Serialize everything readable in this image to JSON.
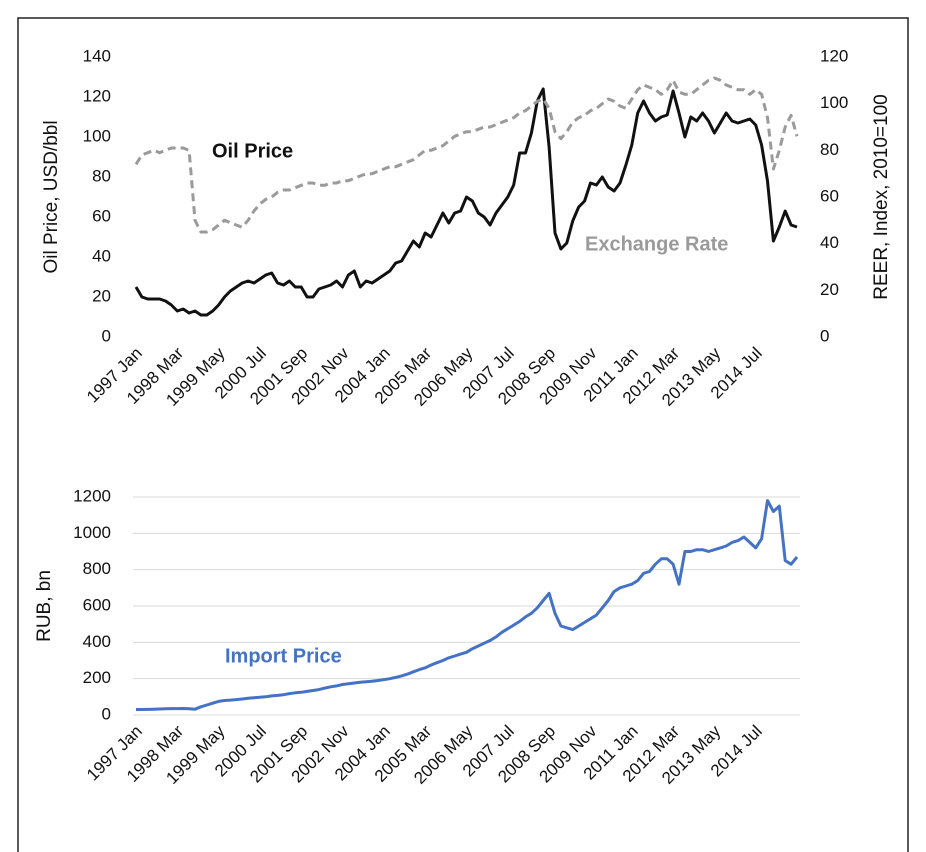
{
  "chart_data": [
    {
      "type": "line",
      "ylabel": "Oil Price, USD/bbl",
      "y2label": "REER, Index, 2010=100",
      "categories": [
        "1997 Jan",
        null,
        null,
        null,
        null,
        null,
        null,
        "1998 Mar",
        null,
        null,
        null,
        null,
        null,
        null,
        "1999 May",
        null,
        null,
        null,
        null,
        null,
        null,
        "2000 Jul",
        null,
        null,
        null,
        null,
        null,
        null,
        "2001 Sep",
        null,
        null,
        null,
        null,
        null,
        null,
        "2002 Nov",
        null,
        null,
        null,
        null,
        null,
        null,
        "2004 Jan",
        null,
        null,
        null,
        null,
        null,
        null,
        "2005 Mar",
        null,
        null,
        null,
        null,
        null,
        null,
        "2006 May",
        null,
        null,
        null,
        null,
        null,
        null,
        "2007 Jul",
        null,
        null,
        null,
        null,
        null,
        null,
        "2008 Sep",
        null,
        null,
        null,
        null,
        null,
        null,
        "2009 Nov",
        null,
        null,
        null,
        null,
        null,
        null,
        "2011 Jan",
        null,
        null,
        null,
        null,
        null,
        null,
        "2012 Mar",
        null,
        null,
        null,
        null,
        null,
        null,
        "2013 May",
        null,
        null,
        null,
        null,
        null,
        null,
        "2014 Jul",
        null,
        null,
        null,
        null,
        null,
        null,
        null
      ],
      "ylim": [
        0,
        140
      ],
      "yticks": [
        0,
        20,
        40,
        60,
        80,
        100,
        120,
        140
      ],
      "y2lim": [
        0,
        120
      ],
      "y2ticks": [
        0,
        20,
        40,
        60,
        80,
        100,
        120
      ],
      "grid": false,
      "series": [
        {
          "name": "Oil Price",
          "color": "#111111",
          "dashed": false,
          "values": [
            25,
            20,
            19,
            19,
            19,
            18,
            16,
            13,
            14,
            12,
            13,
            11,
            11,
            13,
            16,
            20,
            23,
            25,
            27,
            28,
            27,
            29,
            31,
            32,
            27,
            26,
            28,
            25,
            25,
            20,
            20,
            24,
            25,
            26,
            28,
            25,
            31,
            33,
            25,
            28,
            27,
            29,
            31,
            33,
            37,
            38,
            43,
            48,
            45,
            52,
            50,
            56,
            62,
            57,
            62,
            63,
            70,
            68,
            62,
            60,
            56,
            62,
            66,
            70,
            76,
            92,
            92,
            102,
            118,
            124,
            95,
            52,
            44,
            47,
            58,
            65,
            68,
            77,
            76,
            80,
            75,
            73,
            77,
            86,
            96,
            112,
            118,
            112,
            108,
            110,
            111,
            123,
            112,
            100,
            110,
            108,
            112,
            108,
            102,
            107,
            112,
            108,
            107,
            108,
            109,
            106,
            96,
            78,
            48,
            55,
            63,
            56,
            55
          ]
        },
        {
          "name": "Exchange Rate",
          "color": "#9a9a9a",
          "dashed": true,
          "axis": "y2",
          "values": [
            74,
            78,
            79,
            80,
            79,
            80,
            81,
            81,
            81,
            80,
            50,
            45,
            45,
            46,
            48,
            50,
            49,
            48,
            47,
            50,
            54,
            57,
            59,
            60,
            62,
            63,
            63,
            64,
            65,
            66,
            66,
            65,
            65,
            66,
            66,
            67,
            67,
            68,
            69,
            70,
            70,
            71,
            72,
            73,
            73,
            74,
            75,
            76,
            78,
            80,
            80,
            81,
            82,
            84,
            86,
            87,
            88,
            88,
            89,
            90,
            90,
            91,
            92,
            93,
            94,
            96,
            97,
            99,
            101,
            102,
            98,
            88,
            85,
            88,
            92,
            94,
            95,
            97,
            98,
            100,
            102,
            101,
            99,
            98,
            102,
            106,
            108,
            107,
            106,
            104,
            106,
            110,
            105,
            104,
            104,
            106,
            108,
            110,
            111,
            110,
            108,
            107,
            106,
            106,
            104,
            106,
            104,
            94,
            72,
            80,
            90,
            95,
            86
          ]
        }
      ]
    },
    {
      "type": "line",
      "ylabel": "RUB, bn",
      "categories": [
        "1997 Jan",
        null,
        null,
        null,
        null,
        null,
        null,
        "1998 Mar",
        null,
        null,
        null,
        null,
        null,
        null,
        "1999 May",
        null,
        null,
        null,
        null,
        null,
        null,
        "2000 Jul",
        null,
        null,
        null,
        null,
        null,
        null,
        "2001 Sep",
        null,
        null,
        null,
        null,
        null,
        null,
        "2002 Nov",
        null,
        null,
        null,
        null,
        null,
        null,
        "2004 Jan",
        null,
        null,
        null,
        null,
        null,
        null,
        "2005 Mar",
        null,
        null,
        null,
        null,
        null,
        null,
        "2006 May",
        null,
        null,
        null,
        null,
        null,
        null,
        "2007 Jul",
        null,
        null,
        null,
        null,
        null,
        null,
        "2008 Sep",
        null,
        null,
        null,
        null,
        null,
        null,
        "2009 Nov",
        null,
        null,
        null,
        null,
        null,
        null,
        "2011 Jan",
        null,
        null,
        null,
        null,
        null,
        null,
        "2012 Mar",
        null,
        null,
        null,
        null,
        null,
        null,
        "2013 May",
        null,
        null,
        null,
        null,
        null,
        null,
        "2014 Jul",
        null,
        null,
        null,
        null,
        null,
        null,
        null
      ],
      "ylim": [
        0,
        1200
      ],
      "yticks": [
        0,
        200,
        400,
        600,
        800,
        1000,
        1200
      ],
      "grid": true,
      "series": [
        {
          "name": "Import Price",
          "color": "#4472c4",
          "dashed": false,
          "values": [
            30,
            30,
            31,
            32,
            33,
            34,
            35,
            35,
            36,
            34,
            32,
            45,
            55,
            65,
            75,
            80,
            82,
            85,
            88,
            92,
            95,
            98,
            100,
            105,
            108,
            112,
            118,
            122,
            125,
            130,
            135,
            140,
            148,
            155,
            160,
            168,
            172,
            176,
            180,
            183,
            186,
            190,
            195,
            200,
            207,
            215,
            225,
            238,
            250,
            260,
            275,
            288,
            300,
            315,
            325,
            335,
            345,
            365,
            380,
            395,
            410,
            430,
            455,
            475,
            495,
            515,
            540,
            560,
            590,
            630,
            670,
            560,
            490,
            480,
            470,
            490,
            510,
            530,
            550,
            590,
            630,
            680,
            700,
            710,
            720,
            740,
            780,
            790,
            830,
            860,
            860,
            830,
            720,
            900,
            900,
            910,
            910,
            900,
            910,
            920,
            930,
            950,
            960,
            980,
            950,
            920,
            970,
            1180,
            1120,
            1150,
            850,
            830,
            870
          ]
        }
      ]
    }
  ]
}
